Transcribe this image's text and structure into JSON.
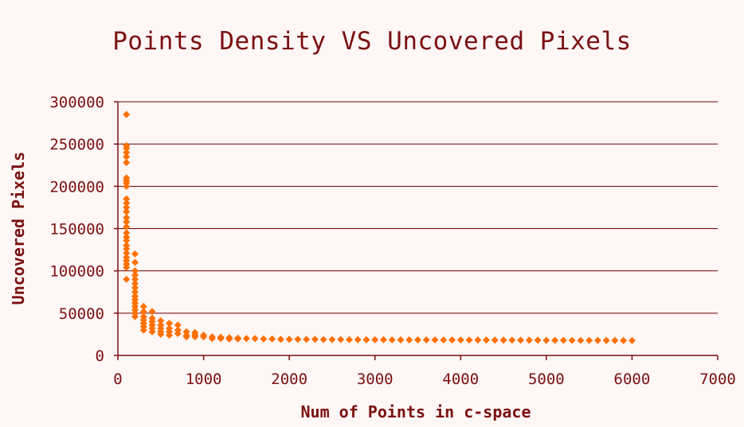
{
  "chart_data": {
    "type": "scatter",
    "title": "Points Density VS Uncovered Pixels",
    "xlabel": "Num of Points in c-space",
    "ylabel": "Uncovered Pixels",
    "xlim": [
      0,
      7000
    ],
    "ylim": [
      0,
      300000
    ],
    "x_ticks": [
      0,
      1000,
      2000,
      3000,
      4000,
      5000,
      6000,
      7000
    ],
    "y_ticks": [
      0,
      50000,
      100000,
      150000,
      200000,
      250000,
      300000
    ],
    "grid": "horizontal",
    "legend": "none",
    "marker_color": "#ff7000",
    "text_color": "#7a1010",
    "series": [
      {
        "points": [
          [
            100,
            285000
          ],
          [
            100,
            248000
          ],
          [
            100,
            245000
          ],
          [
            100,
            240000
          ],
          [
            100,
            235000
          ],
          [
            100,
            228000
          ],
          [
            100,
            210000
          ],
          [
            100,
            207000
          ],
          [
            100,
            204000
          ],
          [
            100,
            200000
          ],
          [
            100,
            185000
          ],
          [
            100,
            180000
          ],
          [
            100,
            175000
          ],
          [
            100,
            170000
          ],
          [
            100,
            163000
          ],
          [
            100,
            158000
          ],
          [
            100,
            152000
          ],
          [
            100,
            145000
          ],
          [
            100,
            140000
          ],
          [
            100,
            136000
          ],
          [
            100,
            130000
          ],
          [
            100,
            126000
          ],
          [
            100,
            121000
          ],
          [
            100,
            116000
          ],
          [
            100,
            112000
          ],
          [
            100,
            108000
          ],
          [
            100,
            104000
          ],
          [
            100,
            90000
          ],
          [
            200,
            120000
          ],
          [
            200,
            110000
          ],
          [
            200,
            100000
          ],
          [
            200,
            95000
          ],
          [
            200,
            90000
          ],
          [
            200,
            85000
          ],
          [
            200,
            80000
          ],
          [
            200,
            75000
          ],
          [
            200,
            70000
          ],
          [
            200,
            66000
          ],
          [
            200,
            62000
          ],
          [
            200,
            58000
          ],
          [
            200,
            54000
          ],
          [
            200,
            50000
          ],
          [
            200,
            46000
          ],
          [
            300,
            58000
          ],
          [
            300,
            52000
          ],
          [
            300,
            46000
          ],
          [
            300,
            42000
          ],
          [
            300,
            38000
          ],
          [
            300,
            34000
          ],
          [
            300,
            30000
          ],
          [
            400,
            52000
          ],
          [
            400,
            44000
          ],
          [
            400,
            40000
          ],
          [
            400,
            36000
          ],
          [
            400,
            32000
          ],
          [
            400,
            28000
          ],
          [
            500,
            41000
          ],
          [
            500,
            36000
          ],
          [
            500,
            32000
          ],
          [
            500,
            28000
          ],
          [
            500,
            25000
          ],
          [
            600,
            38000
          ],
          [
            600,
            32000
          ],
          [
            600,
            28000
          ],
          [
            600,
            24000
          ],
          [
            700,
            36000
          ],
          [
            700,
            30000
          ],
          [
            700,
            26000
          ],
          [
            800,
            28000
          ],
          [
            800,
            24000
          ],
          [
            800,
            22000
          ],
          [
            900,
            27000
          ],
          [
            900,
            24000
          ],
          [
            900,
            22000
          ],
          [
            1000,
            24000
          ],
          [
            1000,
            22000
          ],
          [
            1100,
            22000
          ],
          [
            1100,
            20000
          ],
          [
            1200,
            21500
          ],
          [
            1200,
            20000
          ],
          [
            1300,
            21000
          ],
          [
            1300,
            19500
          ],
          [
            1400,
            20500
          ],
          [
            1400,
            19500
          ],
          [
            1500,
            20000
          ],
          [
            1600,
            20000
          ],
          [
            1700,
            19500
          ],
          [
            1800,
            19500
          ],
          [
            1900,
            19000
          ],
          [
            2000,
            19000
          ],
          [
            2100,
            19000
          ],
          [
            2200,
            19000
          ],
          [
            2300,
            19000
          ],
          [
            2400,
            18800
          ],
          [
            2500,
            18800
          ],
          [
            2600,
            18800
          ],
          [
            2700,
            18700
          ],
          [
            2800,
            18700
          ],
          [
            2900,
            18600
          ],
          [
            3000,
            18600
          ],
          [
            3100,
            18600
          ],
          [
            3200,
            18500
          ],
          [
            3300,
            18500
          ],
          [
            3400,
            18500
          ],
          [
            3500,
            18400
          ],
          [
            3600,
            18400
          ],
          [
            3700,
            18400
          ],
          [
            3800,
            18300
          ],
          [
            3900,
            18300
          ],
          [
            4000,
            18300
          ],
          [
            4100,
            18200
          ],
          [
            4200,
            18200
          ],
          [
            4300,
            18200
          ],
          [
            4400,
            18100
          ],
          [
            4500,
            18100
          ],
          [
            4600,
            18100
          ],
          [
            4700,
            18000
          ],
          [
            4800,
            18000
          ],
          [
            4900,
            18000
          ],
          [
            5000,
            17900
          ],
          [
            5100,
            17900
          ],
          [
            5200,
            17900
          ],
          [
            5300,
            17800
          ],
          [
            5400,
            17800
          ],
          [
            5500,
            17800
          ],
          [
            5600,
            17700
          ],
          [
            5700,
            17700
          ],
          [
            5800,
            17700
          ],
          [
            5900,
            17600
          ],
          [
            6000,
            17600
          ]
        ]
      }
    ]
  }
}
